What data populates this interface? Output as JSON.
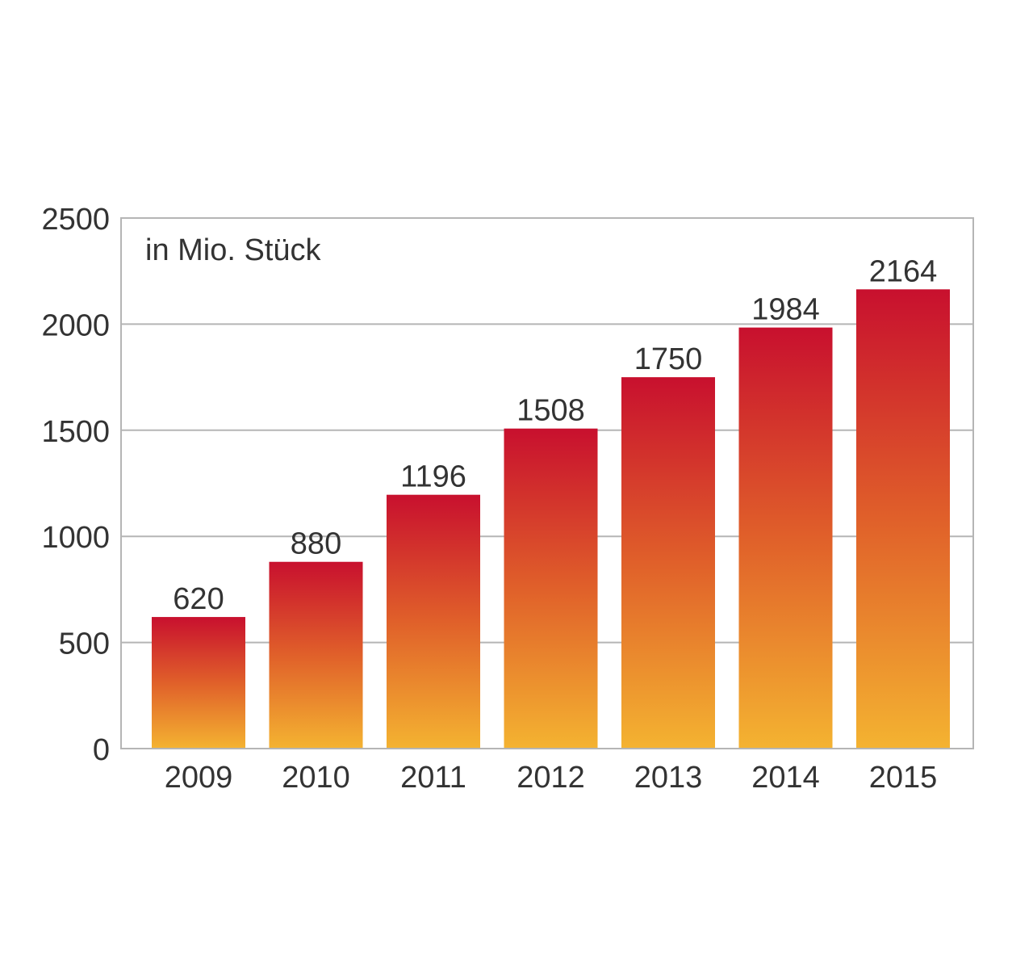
{
  "chart_data": {
    "type": "bar",
    "unit_label": "in Mio. Stück",
    "categories": [
      "2009",
      "2010",
      "2011",
      "2012",
      "2013",
      "2014",
      "2015"
    ],
    "values": [
      620,
      880,
      1196,
      1508,
      1750,
      1984,
      2164
    ],
    "data_labels": [
      "620",
      "880",
      "1196",
      "1508",
      "1750",
      "1984",
      "2164"
    ],
    "y_ticks": [
      "0",
      "500",
      "1000",
      "1500",
      "2000",
      "2500"
    ],
    "y_tick_values": [
      0,
      500,
      1000,
      1500,
      2000,
      2500
    ],
    "ylim": [
      0,
      2500
    ],
    "grid": true,
    "colors": {
      "bar_top": "#c8102e",
      "bar_bottom": "#f4b331",
      "grid": "#b5b5b5",
      "frame": "#b5b5b5",
      "text": "#333333"
    }
  }
}
